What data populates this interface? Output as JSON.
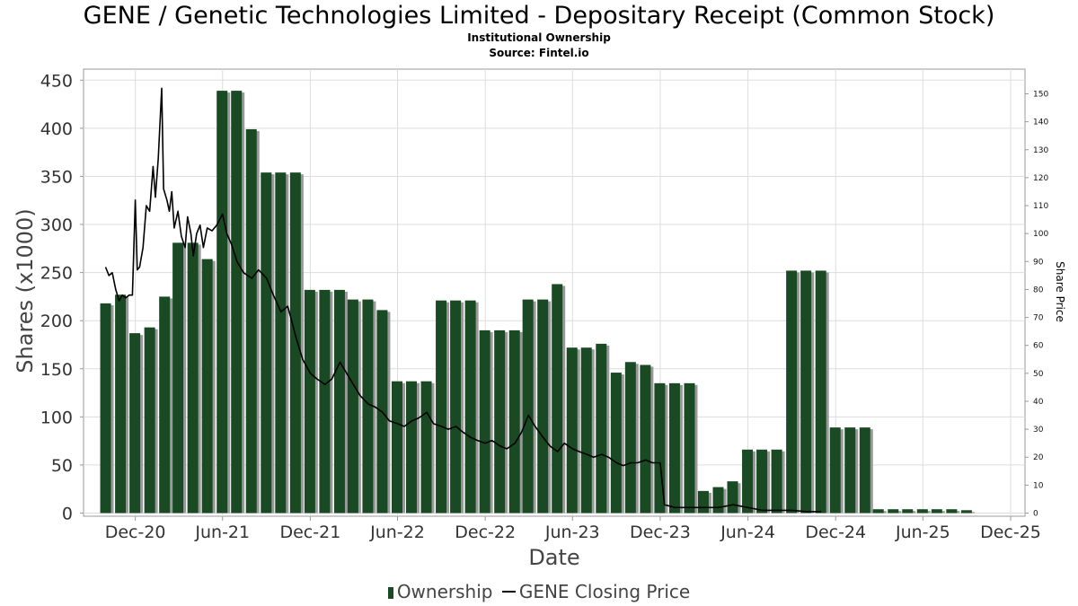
{
  "title": "GENE / Genetic Technologies Limited - Depositary Receipt (Common Stock)",
  "subtitle": "Institutional Ownership",
  "source": "Source: Fintel.io",
  "colors": {
    "bar": "#1a4a23",
    "bar_shadow": "#999999",
    "line": "#000000",
    "grid": "#dddddd"
  },
  "legend": {
    "ownership": "Ownership",
    "price": "GENE Closing Price"
  },
  "chart_data": {
    "type": "bar",
    "title": "GENE / Genetic Technologies Limited - Depositary Receipt (Common Stock)",
    "xlabel": "Date",
    "ylabel": "Shares (x1000)",
    "y2label": "Share Price",
    "ylim": [
      0,
      460
    ],
    "y2lim": [
      0,
      157
    ],
    "xlim": [
      "2020-08-15",
      "2025-12-31"
    ],
    "yticks": [
      0,
      50,
      100,
      150,
      200,
      250,
      300,
      350,
      400,
      450
    ],
    "y2ticks": [
      0,
      10,
      20,
      30,
      40,
      50,
      60,
      70,
      80,
      90,
      100,
      110,
      120,
      130,
      140,
      150
    ],
    "xticks": [
      {
        "label": "Dec-20",
        "date": "2020-12-01"
      },
      {
        "label": "Jun-21",
        "date": "2021-06-01"
      },
      {
        "label": "Dec-21",
        "date": "2021-12-01"
      },
      {
        "label": "Jun-22",
        "date": "2022-06-01"
      },
      {
        "label": "Dec-22",
        "date": "2022-12-01"
      },
      {
        "label": "Jun-23",
        "date": "2023-06-01"
      },
      {
        "label": "Dec-23",
        "date": "2023-12-01"
      },
      {
        "label": "Jun-24",
        "date": "2024-06-01"
      },
      {
        "label": "Dec-24",
        "date": "2024-12-01"
      },
      {
        "label": "Jun-25",
        "date": "2025-06-01"
      },
      {
        "label": "Dec-25",
        "date": "2025-12-01"
      }
    ],
    "grid": true,
    "legend_position": "bottom",
    "series": [
      {
        "name": "Ownership",
        "type": "bar",
        "points": [
          [
            "2020-09-30",
            218
          ],
          [
            "2020-10-31",
            227
          ],
          [
            "2020-11-30",
            187
          ],
          [
            "2020-12-31",
            193
          ],
          [
            "2021-01-31",
            225
          ],
          [
            "2021-02-28",
            281
          ],
          [
            "2021-03-31",
            281
          ],
          [
            "2021-04-30",
            264
          ],
          [
            "2021-05-31",
            439
          ],
          [
            "2021-06-30",
            439
          ],
          [
            "2021-07-31",
            399
          ],
          [
            "2021-08-31",
            354
          ],
          [
            "2021-09-30",
            354
          ],
          [
            "2021-10-31",
            354
          ],
          [
            "2021-11-30",
            232
          ],
          [
            "2021-12-31",
            232
          ],
          [
            "2022-01-31",
            232
          ],
          [
            "2022-02-28",
            222
          ],
          [
            "2022-03-31",
            222
          ],
          [
            "2022-04-30",
            211
          ],
          [
            "2022-05-31",
            137
          ],
          [
            "2022-06-30",
            137
          ],
          [
            "2022-07-31",
            137
          ],
          [
            "2022-08-31",
            221
          ],
          [
            "2022-09-30",
            221
          ],
          [
            "2022-10-31",
            221
          ],
          [
            "2022-11-30",
            190
          ],
          [
            "2022-12-31",
            190
          ],
          [
            "2023-01-31",
            190
          ],
          [
            "2023-02-28",
            222
          ],
          [
            "2023-03-31",
            222
          ],
          [
            "2023-04-30",
            238
          ],
          [
            "2023-05-31",
            172
          ],
          [
            "2023-06-30",
            172
          ],
          [
            "2023-07-31",
            176
          ],
          [
            "2023-08-31",
            146
          ],
          [
            "2023-09-30",
            157
          ],
          [
            "2023-10-31",
            154
          ],
          [
            "2023-11-30",
            135
          ],
          [
            "2023-12-31",
            135
          ],
          [
            "2024-01-31",
            135
          ],
          [
            "2024-02-29",
            23
          ],
          [
            "2024-03-31",
            27
          ],
          [
            "2024-04-30",
            33
          ],
          [
            "2024-05-31",
            66
          ],
          [
            "2024-06-30",
            66
          ],
          [
            "2024-07-31",
            66
          ],
          [
            "2024-08-31",
            252
          ],
          [
            "2024-09-30",
            252
          ],
          [
            "2024-10-31",
            252
          ],
          [
            "2024-11-30",
            89
          ],
          [
            "2024-12-31",
            89
          ],
          [
            "2025-01-31",
            89
          ],
          [
            "2025-02-28",
            4
          ],
          [
            "2025-03-31",
            4
          ],
          [
            "2025-04-30",
            4
          ],
          [
            "2025-05-31",
            4
          ],
          [
            "2025-06-30",
            4
          ],
          [
            "2025-07-31",
            4
          ],
          [
            "2025-08-31",
            3
          ]
        ]
      },
      {
        "name": "GENE Closing Price",
        "type": "line",
        "axis": "right",
        "points": [
          [
            "2020-09-30",
            88
          ],
          [
            "2020-10-07",
            85
          ],
          [
            "2020-10-14",
            86
          ],
          [
            "2020-10-21",
            80
          ],
          [
            "2020-10-28",
            76
          ],
          [
            "2020-11-04",
            78
          ],
          [
            "2020-11-11",
            77
          ],
          [
            "2020-11-18",
            78
          ],
          [
            "2020-11-25",
            78
          ],
          [
            "2020-12-01",
            112
          ],
          [
            "2020-12-05",
            87
          ],
          [
            "2020-12-10",
            88
          ],
          [
            "2020-12-17",
            95
          ],
          [
            "2020-12-24",
            110
          ],
          [
            "2020-12-31",
            108
          ],
          [
            "2021-01-07",
            124
          ],
          [
            "2021-01-12",
            113
          ],
          [
            "2021-01-18",
            127
          ],
          [
            "2021-01-25",
            152
          ],
          [
            "2021-01-29",
            116
          ],
          [
            "2021-02-05",
            112
          ],
          [
            "2021-02-10",
            108
          ],
          [
            "2021-02-15",
            115
          ],
          [
            "2021-02-20",
            102
          ],
          [
            "2021-02-28",
            108
          ],
          [
            "2021-03-07",
            99
          ],
          [
            "2021-03-15",
            95
          ],
          [
            "2021-03-20",
            106
          ],
          [
            "2021-03-27",
            100
          ],
          [
            "2021-04-01",
            92
          ],
          [
            "2021-04-08",
            100
          ],
          [
            "2021-04-15",
            103
          ],
          [
            "2021-04-22",
            95
          ],
          [
            "2021-04-30",
            102
          ],
          [
            "2021-05-10",
            101
          ],
          [
            "2021-05-20",
            103
          ],
          [
            "2021-06-01",
            107
          ],
          [
            "2021-06-10",
            100
          ],
          [
            "2021-06-20",
            96
          ],
          [
            "2021-07-01",
            90
          ],
          [
            "2021-07-15",
            86
          ],
          [
            "2021-08-01",
            84
          ],
          [
            "2021-08-15",
            87
          ],
          [
            "2021-09-01",
            84
          ],
          [
            "2021-09-15",
            78
          ],
          [
            "2021-10-01",
            72
          ],
          [
            "2021-10-15",
            74
          ],
          [
            "2021-11-01",
            63
          ],
          [
            "2021-11-15",
            55
          ],
          [
            "2021-12-01",
            50
          ],
          [
            "2021-12-15",
            48
          ],
          [
            "2022-01-01",
            46
          ],
          [
            "2022-01-15",
            48
          ],
          [
            "2022-02-01",
            54
          ],
          [
            "2022-02-15",
            50
          ],
          [
            "2022-03-01",
            46
          ],
          [
            "2022-03-15",
            42
          ],
          [
            "2022-04-01",
            39
          ],
          [
            "2022-04-15",
            38
          ],
          [
            "2022-05-01",
            36
          ],
          [
            "2022-05-15",
            33
          ],
          [
            "2022-06-01",
            32
          ],
          [
            "2022-06-15",
            31
          ],
          [
            "2022-07-01",
            33
          ],
          [
            "2022-07-15",
            34
          ],
          [
            "2022-08-01",
            36
          ],
          [
            "2022-08-15",
            32
          ],
          [
            "2022-09-01",
            31
          ],
          [
            "2022-09-15",
            30
          ],
          [
            "2022-10-01",
            31
          ],
          [
            "2022-10-15",
            29
          ],
          [
            "2022-11-01",
            27
          ],
          [
            "2022-11-15",
            26
          ],
          [
            "2022-12-01",
            25
          ],
          [
            "2022-12-15",
            26
          ],
          [
            "2023-01-01",
            24
          ],
          [
            "2023-01-15",
            23
          ],
          [
            "2023-02-01",
            25
          ],
          [
            "2023-02-15",
            29
          ],
          [
            "2023-03-01",
            35
          ],
          [
            "2023-03-15",
            31
          ],
          [
            "2023-04-01",
            27
          ],
          [
            "2023-04-15",
            24
          ],
          [
            "2023-05-01",
            22
          ],
          [
            "2023-05-15",
            25
          ],
          [
            "2023-06-01",
            23
          ],
          [
            "2023-06-15",
            22
          ],
          [
            "2023-07-01",
            21
          ],
          [
            "2023-07-15",
            20
          ],
          [
            "2023-08-01",
            21
          ],
          [
            "2023-08-15",
            20
          ],
          [
            "2023-09-01",
            18
          ],
          [
            "2023-09-15",
            17
          ],
          [
            "2023-10-01",
            18
          ],
          [
            "2023-10-15",
            18
          ],
          [
            "2023-11-01",
            19
          ],
          [
            "2023-11-15",
            18
          ],
          [
            "2023-12-01",
            18
          ],
          [
            "2023-12-10",
            3
          ],
          [
            "2024-01-01",
            2
          ],
          [
            "2024-02-01",
            2
          ],
          [
            "2024-03-01",
            2
          ],
          [
            "2024-04-01",
            2
          ],
          [
            "2024-05-01",
            3
          ],
          [
            "2024-06-01",
            2
          ],
          [
            "2024-07-01",
            1
          ],
          [
            "2024-08-01",
            1
          ],
          [
            "2024-09-01",
            1
          ],
          [
            "2024-10-01",
            0.5
          ],
          [
            "2024-11-01",
            0.5
          ]
        ]
      }
    ]
  }
}
